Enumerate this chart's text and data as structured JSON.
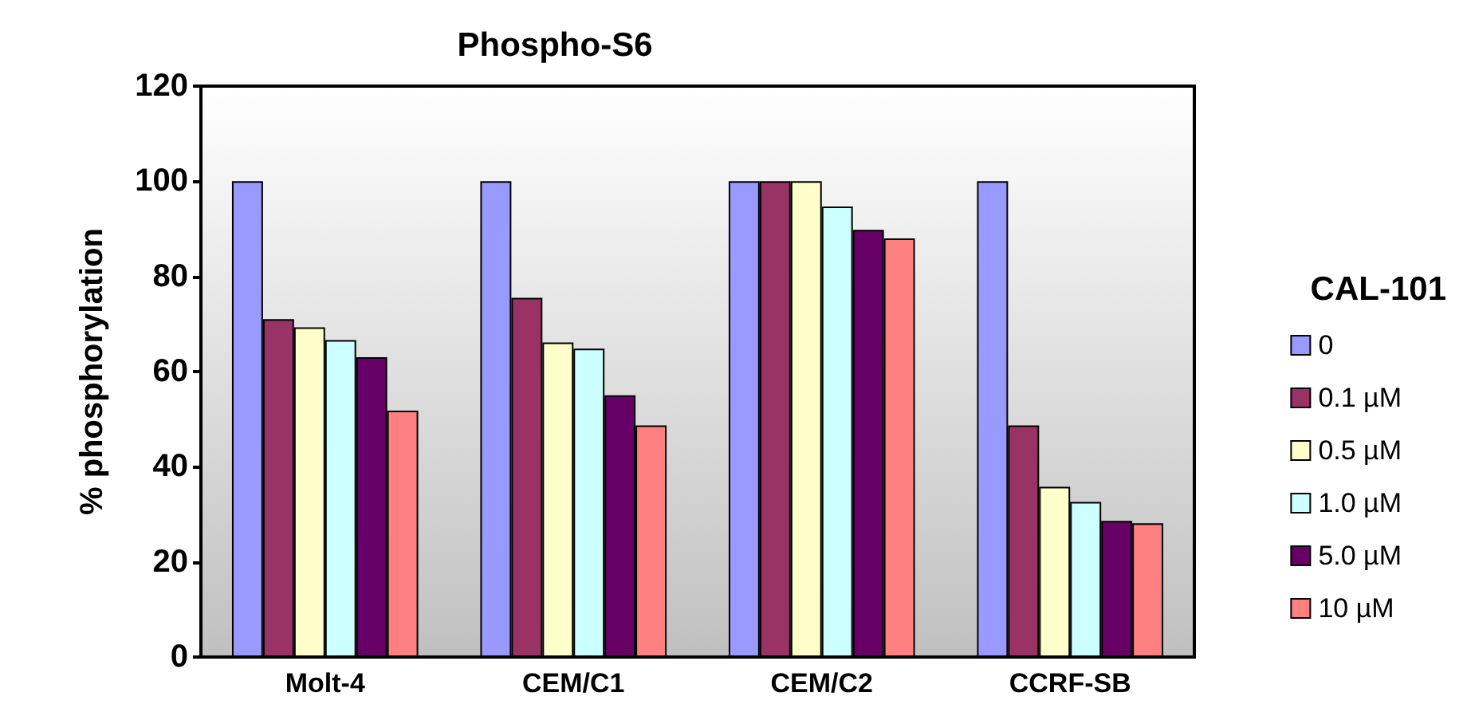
{
  "chart_data": {
    "type": "bar",
    "title": "Phospho-S6",
    "ylabel": "% phosphorylation",
    "legend_title": "CAL-101",
    "categories": [
      "Molt-4",
      "CEM/C1",
      "CEM/C2",
      "CCRF-SB"
    ],
    "series": [
      {
        "name": "0",
        "color": "#9999ff",
        "values": [
          100,
          100,
          100,
          100
        ]
      },
      {
        "name": "0.1 µM",
        "color": "#993366",
        "values": [
          71,
          75.5,
          100,
          48.7
        ]
      },
      {
        "name": "0.5 µM",
        "color": "#ffffcc",
        "values": [
          69.3,
          66.1,
          100,
          35.8
        ]
      },
      {
        "name": "1.0 µM",
        "color": "#ccffff",
        "values": [
          66.6,
          64.8,
          94.7,
          32.6
        ]
      },
      {
        "name": "5.0 µM",
        "color": "#660066",
        "values": [
          63,
          55,
          89.8,
          28.6
        ]
      },
      {
        "name": "10 µM",
        "color": "#ff8080",
        "values": [
          51.8,
          48.7,
          88,
          28.1
        ]
      }
    ],
    "ylim": [
      0,
      120
    ],
    "yticks": [
      0,
      20,
      40,
      60,
      80,
      100,
      120
    ],
    "grid": false,
    "legend": "right"
  }
}
